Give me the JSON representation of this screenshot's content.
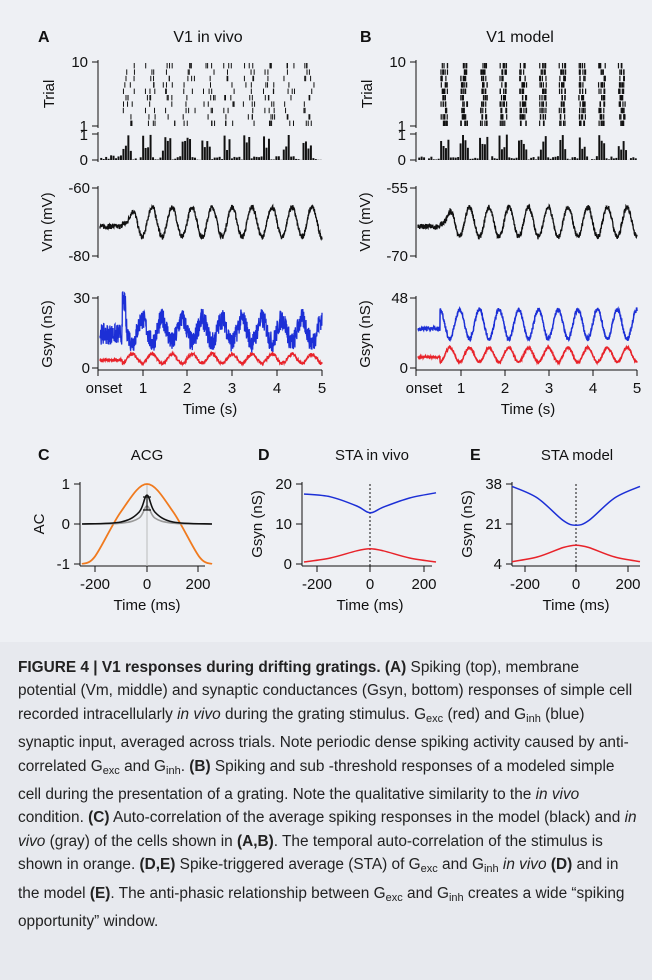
{
  "figure": {
    "panels": {
      "A": {
        "letter": "A",
        "title": "V1 in vivo"
      },
      "B": {
        "letter": "B",
        "title": "V1 model"
      },
      "C": {
        "letter": "C",
        "title": "ACG"
      },
      "D": {
        "letter": "D",
        "title": "STA in vivo"
      },
      "E": {
        "letter": "E",
        "title": "STA model"
      }
    },
    "ylabels": {
      "trial": "Trial",
      "vm": "Vm (mV)",
      "gsyn": "Gsyn (nS)",
      "ac": "AC"
    },
    "xlabels": {
      "time_s": "Time (s)",
      "time_ms": "Time (ms)"
    },
    "ticks": {
      "trial": [
        "10",
        "1"
      ],
      "psth": [
        "1",
        "0"
      ],
      "vm_A": [
        "-60",
        "-80"
      ],
      "vm_B": [
        "-55",
        "-70"
      ],
      "gsyn_A": [
        "30",
        "0"
      ],
      "gsyn_B": [
        "48",
        "0"
      ],
      "time_s": [
        "onset",
        "1",
        "2",
        "3",
        "4",
        "5"
      ],
      "ac": [
        "1",
        "0",
        "-1"
      ],
      "time_ms": [
        "-200",
        "0",
        "200"
      ],
      "gsyn_D": [
        "20",
        "10",
        "0"
      ],
      "gsyn_E": [
        "38",
        "21",
        "4"
      ]
    },
    "colors": {
      "gexc": "#e8232a",
      "ginh": "#1c2fd6",
      "vm": "#111111",
      "acg_stimulus": "#f07a1e",
      "acg_model": "#111111",
      "acg_vivo": "#999999",
      "caption_bg": "#e7e9ee",
      "figure_bg": "#eef0f4"
    }
  },
  "chart_data": [
    {
      "panel": "A",
      "type": "line",
      "title": "V1 in vivo",
      "xlabel": "Time (s)",
      "xlim": [
        0,
        5
      ],
      "subplots": [
        {
          "name": "spikes",
          "type": "scatter",
          "ylabel": "Trial",
          "ylim": [
            1,
            10
          ],
          "trials": 10,
          "stimulus_cycles": 10
        },
        {
          "name": "psth",
          "type": "bar",
          "ylim": [
            0,
            1
          ]
        },
        {
          "name": "vm",
          "ylabel": "Vm (mV)",
          "ylim": [
            -80,
            -60
          ],
          "cycles": 10
        },
        {
          "name": "gsyn",
          "ylabel": "Gsyn (nS)",
          "ylim": [
            0,
            30
          ],
          "series": [
            {
              "name": "Ginh",
              "color": "#1c2fd6",
              "mean": 16,
              "amplitude": 5
            },
            {
              "name": "Gexc",
              "color": "#e8232a",
              "mean": 4,
              "amplitude": 2
            }
          ]
        }
      ]
    },
    {
      "panel": "B",
      "type": "line",
      "title": "V1 model",
      "xlabel": "Time (s)",
      "xlim": [
        0,
        5
      ],
      "subplots": [
        {
          "name": "spikes",
          "type": "scatter",
          "ylabel": "Trial",
          "ylim": [
            1,
            10
          ],
          "trials": 10,
          "stimulus_cycles": 10
        },
        {
          "name": "psth",
          "type": "bar",
          "ylim": [
            0,
            1
          ]
        },
        {
          "name": "vm",
          "ylabel": "Vm (mV)",
          "ylim": [
            -70,
            -55
          ],
          "cycles": 10
        },
        {
          "name": "gsyn",
          "ylabel": "Gsyn (nS)",
          "ylim": [
            0,
            48
          ],
          "series": [
            {
              "name": "Ginh",
              "color": "#1c2fd6",
              "mean": 30,
              "amplitude": 10
            },
            {
              "name": "Gexc",
              "color": "#e8232a",
              "mean": 9,
              "amplitude": 5
            }
          ]
        }
      ]
    },
    {
      "panel": "C",
      "type": "line",
      "title": "ACG",
      "xlabel": "Time (ms)",
      "ylabel": "AC",
      "xlim": [
        -250,
        250
      ],
      "ylim": [
        -1,
        1
      ],
      "series": [
        {
          "name": "stimulus",
          "color": "#f07a1e",
          "x": [
            -250,
            -200,
            -100,
            0,
            100,
            200,
            250
          ],
          "y": [
            -1,
            -0.81,
            0.31,
            1,
            0.31,
            -0.81,
            -1
          ]
        },
        {
          "name": "model",
          "color": "#111111",
          "x": [
            -250,
            -100,
            -30,
            0,
            30,
            100,
            250
          ],
          "y": [
            0,
            0.05,
            0.3,
            0.72,
            0.3,
            0.05,
            0
          ]
        },
        {
          "name": "in vivo",
          "color": "#999999",
          "x": [
            -250,
            -100,
            -30,
            0,
            30,
            100,
            250
          ],
          "y": [
            0,
            0.02,
            0.15,
            0.45,
            0.15,
            0.02,
            0
          ]
        }
      ]
    },
    {
      "panel": "D",
      "type": "line",
      "title": "STA in vivo",
      "xlabel": "Time (ms)",
      "ylabel": "Gsyn (nS)",
      "xlim": [
        -250,
        250
      ],
      "ylim": [
        0,
        20
      ],
      "series": [
        {
          "name": "Ginh",
          "color": "#1c2fd6",
          "x": [
            -250,
            -150,
            -50,
            0,
            50,
            150,
            250
          ],
          "y": [
            17.5,
            16.8,
            14.5,
            12.8,
            14.2,
            16.5,
            17.8
          ]
        },
        {
          "name": "Gexc",
          "color": "#e8232a",
          "x": [
            -250,
            -150,
            -50,
            0,
            50,
            150,
            250
          ],
          "y": [
            0.5,
            1.5,
            3.3,
            3.8,
            3.3,
            1.5,
            0.5
          ]
        }
      ]
    },
    {
      "panel": "E",
      "type": "line",
      "title": "STA model",
      "xlabel": "Time (ms)",
      "ylabel": "Gsyn (nS)",
      "xlim": [
        -250,
        250
      ],
      "ylim": [
        4,
        38
      ],
      "series": [
        {
          "name": "Ginh",
          "color": "#1c2fd6",
          "x": [
            -250,
            -150,
            -50,
            0,
            50,
            150,
            250
          ],
          "y": [
            37,
            32,
            22.5,
            20.5,
            22.5,
            32,
            37
          ]
        },
        {
          "name": "Gexc",
          "color": "#e8232a",
          "x": [
            -250,
            -150,
            -50,
            0,
            50,
            150,
            250
          ],
          "y": [
            5,
            7,
            11,
            12,
            11,
            7,
            5
          ]
        }
      ]
    }
  ],
  "caption": {
    "label": "FIGURE 4 | V1 responses during drifting gratings.",
    "tag_A": "(A)",
    "text_A1": " Spiking (top), membrane potential (Vm, middle) and synaptic conductances (Gsyn, bottom) responses of simple cell recorded intracellularly ",
    "italic_invivo_1": "in vivo",
    "text_A2": " during the grating stimulus. G",
    "sub_exc_1": "exc",
    "text_A3": " (red) and G",
    "sub_inh_1": "inh",
    "text_A4": " (blue) synaptic input, averaged across trials. Note periodic dense spiking activity caused by anti-correlated G",
    "sub_exc_2": "exc",
    "text_A5": " and G",
    "sub_inh_2": "inh",
    "text_A6": ".",
    "tag_B": " (B)",
    "text_B1": " Spiking and sub -threshold responses of a modeled simple cell during the presentation of a grating. Note the qualitative similarity to the ",
    "italic_invivo_2": "in vivo",
    "text_B2": " condition.",
    "tag_C": " (C)",
    "text_C1": " Auto-correlation of the average spiking responses in the model (black) and ",
    "italic_invivo_3": "in vivo",
    "text_C2": " (gray) of the cells shown in ",
    "tag_AB": "(A,B)",
    "text_C3": ". The temporal auto-correlation of the stimulus is shown in orange.",
    "tag_DE": " (D,E)",
    "text_DE1": " Spike-triggered average (STA) of G",
    "sub_exc_3": "exc",
    "text_DE2": " and G",
    "sub_inh_3": "inh",
    "text_DE3": " ",
    "italic_invivo_4": "in vivo",
    "text_DE4": " ",
    "tag_D": "(D)",
    "text_DE5": " and in the model ",
    "tag_E": "(E)",
    "text_DE6": ". The anti-phasic relationship between G",
    "sub_exc_4": "exc",
    "text_DE7": " and G",
    "sub_inh_4": "inh",
    "text_DE8": " creates a wide “spiking opportunity” window."
  }
}
